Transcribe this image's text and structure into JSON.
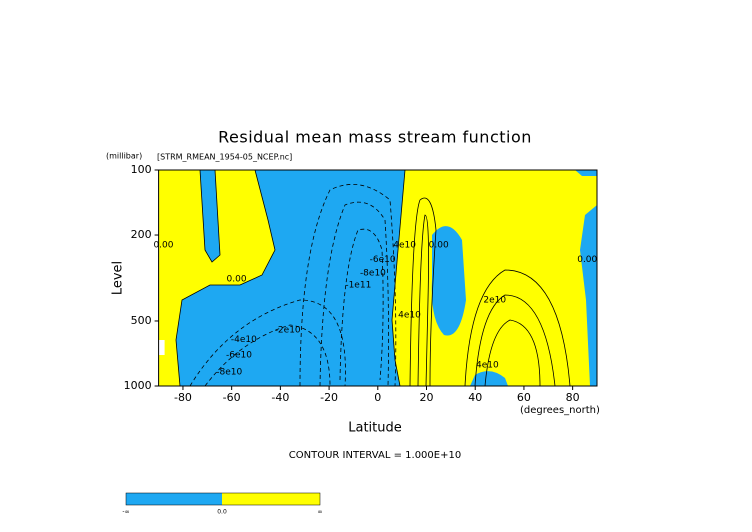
{
  "chart_data": {
    "type": "contour",
    "title": "Residual mean mass stream function",
    "subtitle": "[STRM_RMEAN_1954-05_NCEP.nc]",
    "x_label": "Latitude",
    "x_unit": "(degrees_north)",
    "y_label": "Level",
    "y_unit": "(millibar)",
    "note": "CONTOUR INTERVAL = 1.000E+10",
    "xlim": [
      -90,
      90
    ],
    "xticks": [
      -80,
      -60,
      -40,
      -20,
      0,
      20,
      40,
      60,
      80
    ],
    "ylim": [
      1000,
      100
    ],
    "yticks": [
      100,
      200,
      500,
      1000
    ],
    "y_log": true,
    "fill_colors": [
      "#1ea8f2",
      "#ffff00"
    ],
    "colorbar_labels": [
      "-∞",
      "0.0",
      "∞"
    ],
    "contour_labels": [
      {
        "text": "0.00",
        "x": -88,
        "y": 222
      },
      {
        "text": "0.00",
        "x": -58,
        "y": 319
      },
      {
        "text": "-2e10",
        "x": -37,
        "y": 550
      },
      {
        "text": "-4e10",
        "x": -55,
        "y": 610
      },
      {
        "text": "-6e10",
        "x": -57,
        "y": 720
      },
      {
        "text": "-8e10",
        "x": -61,
        "y": 860
      },
      {
        "text": "-1e11",
        "x": -8,
        "y": 340
      },
      {
        "text": "-8e10",
        "x": -2,
        "y": 300
      },
      {
        "text": "-6e10",
        "x": 2,
        "y": 260
      },
      {
        "text": "4e10",
        "x": 11,
        "y": 222
      },
      {
        "text": "0.00",
        "x": 25,
        "y": 222
      },
      {
        "text": "2e10",
        "x": 48,
        "y": 400
      },
      {
        "text": "4e10",
        "x": 13,
        "y": 470
      },
      {
        "text": "4e10",
        "x": 45,
        "y": 800
      },
      {
        "text": "0.00",
        "x": 86,
        "y": 260
      }
    ]
  }
}
